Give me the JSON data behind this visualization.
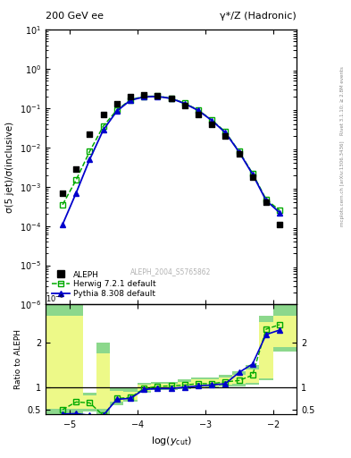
{
  "title_left": "200 GeV ee",
  "title_right": "γ*/Z (Hadronic)",
  "ylabel_main": "σ(5 jet)/σ(inclusive)",
  "ylabel_ratio": "Ratio to ALEPH",
  "xlabel": "log(y_{cut})",
  "right_label_top": "Rivet 3.1.10; ≥ 2.8M events",
  "right_label_bottom": "mcplots.cern.ch [arXiv:1306.3436]",
  "watermark": "ALEPH_2004_S5765862",
  "aleph_x": [
    -5.1,
    -4.9,
    -4.7,
    -4.5,
    -4.3,
    -4.1,
    -3.9,
    -3.7,
    -3.5,
    -3.3,
    -3.1,
    -2.9,
    -2.7,
    -2.5,
    -2.3,
    -2.1,
    -1.9
  ],
  "aleph_y": [
    0.0007,
    0.0028,
    0.022,
    0.07,
    0.13,
    0.2,
    0.22,
    0.21,
    0.175,
    0.115,
    0.07,
    0.04,
    0.02,
    0.007,
    0.0018,
    0.0004,
    0.00011
  ],
  "herwig_x": [
    -5.1,
    -4.9,
    -4.7,
    -4.5,
    -4.3,
    -4.1,
    -3.9,
    -3.7,
    -3.5,
    -3.3,
    -3.1,
    -2.9,
    -2.7,
    -2.5,
    -2.3,
    -2.1,
    -1.9
  ],
  "herwig_y": [
    0.00035,
    0.0015,
    0.008,
    0.035,
    0.09,
    0.165,
    0.2,
    0.205,
    0.18,
    0.135,
    0.09,
    0.05,
    0.025,
    0.008,
    0.0022,
    0.00048,
    0.00025
  ],
  "pythia_x": [
    -5.1,
    -4.9,
    -4.7,
    -4.5,
    -4.3,
    -4.1,
    -3.9,
    -3.7,
    -3.5,
    -3.3,
    -3.1,
    -2.9,
    -2.7,
    -2.5,
    -2.3,
    -2.1,
    -1.9
  ],
  "pythia_y": [
    0.00011,
    0.0007,
    0.005,
    0.028,
    0.085,
    0.16,
    0.195,
    0.2,
    0.178,
    0.132,
    0.088,
    0.049,
    0.024,
    0.0078,
    0.0021,
    0.00045,
    0.00022
  ],
  "xlim": [
    -5.35,
    -1.65
  ],
  "ylim_main": [
    1e-06,
    10
  ],
  "ylim_ratio": [
    0.39,
    2.85
  ],
  "color_aleph": "#000000",
  "color_herwig": "#00aa00",
  "color_pythia": "#0000cc",
  "color_band_green": "#66cc66",
  "color_band_yellow": "#ffff88",
  "herwig_ratio_x": [
    -5.1,
    -4.9,
    -4.7,
    -4.5,
    -4.3,
    -4.1,
    -3.9,
    -3.7,
    -3.5,
    -3.3,
    -3.1,
    -2.9,
    -2.7,
    -2.5,
    -2.3,
    -2.1,
    -1.9
  ],
  "herwig_ratio_y": [
    0.5,
    0.67,
    0.65,
    0.37,
    0.75,
    0.77,
    0.97,
    1.02,
    1.03,
    1.05,
    1.08,
    1.08,
    1.12,
    1.15,
    1.27,
    2.3,
    2.4
  ],
  "pythia_ratio_x": [
    -5.1,
    -4.9,
    -4.7,
    -4.5,
    -4.3,
    -4.1,
    -3.9,
    -3.7,
    -3.5,
    -3.3,
    -3.1,
    -2.9,
    -2.7,
    -2.5,
    -2.3,
    -2.1,
    -1.9
  ],
  "pythia_ratio_y": [
    0.4,
    0.41,
    0.37,
    0.37,
    0.73,
    0.75,
    0.95,
    0.97,
    0.97,
    1.0,
    1.03,
    1.05,
    1.08,
    1.33,
    1.52,
    2.18,
    2.28
  ],
  "band_x_edges": [
    -5.35,
    -5.0,
    -4.8,
    -4.6,
    -4.4,
    -4.2,
    -4.0,
    -3.8,
    -3.6,
    -3.4,
    -3.2,
    -3.0,
    -2.8,
    -2.6,
    -2.4,
    -2.2,
    -2.0,
    -1.8,
    -1.65
  ],
  "band_green_lo": [
    0.39,
    0.39,
    0.45,
    0.39,
    0.6,
    0.68,
    0.88,
    0.93,
    0.93,
    0.95,
    0.98,
    1.0,
    1.02,
    1.02,
    1.05,
    1.15,
    1.8,
    1.8
  ],
  "band_green_hi": [
    2.85,
    2.85,
    0.88,
    2.0,
    1.0,
    0.98,
    1.1,
    1.12,
    1.12,
    1.18,
    1.22,
    1.22,
    1.28,
    1.35,
    1.5,
    2.6,
    2.85,
    2.85
  ],
  "band_yellow_lo": [
    0.52,
    0.52,
    0.52,
    0.52,
    0.68,
    0.72,
    0.92,
    0.96,
    0.96,
    0.97,
    1.0,
    1.02,
    1.05,
    1.08,
    1.1,
    1.2,
    1.9,
    1.9
  ],
  "band_yellow_hi": [
    2.6,
    2.6,
    0.82,
    1.75,
    0.92,
    0.9,
    1.05,
    1.07,
    1.07,
    1.12,
    1.17,
    1.17,
    1.22,
    1.28,
    1.4,
    2.45,
    2.6,
    2.6
  ]
}
